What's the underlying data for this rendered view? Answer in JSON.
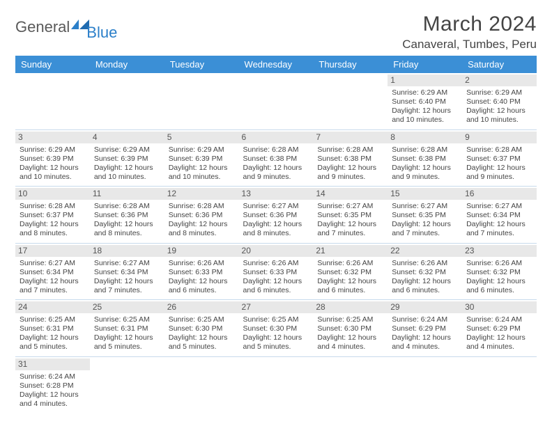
{
  "brand": {
    "part1": "General",
    "part2": "Blue",
    "color": "#2b7fc9"
  },
  "title": "March 2024",
  "location": "Canaveral, Tumbes, Peru",
  "header_bg": "#3b8fd6",
  "days": [
    "Sunday",
    "Monday",
    "Tuesday",
    "Wednesday",
    "Thursday",
    "Friday",
    "Saturday"
  ],
  "weeks": [
    [
      null,
      null,
      null,
      null,
      null,
      {
        "n": "1",
        "sr": "6:29 AM",
        "ss": "6:40 PM",
        "dl": "12 hours and 10 minutes."
      },
      {
        "n": "2",
        "sr": "6:29 AM",
        "ss": "6:40 PM",
        "dl": "12 hours and 10 minutes."
      }
    ],
    [
      {
        "n": "3",
        "sr": "6:29 AM",
        "ss": "6:39 PM",
        "dl": "12 hours and 10 minutes."
      },
      {
        "n": "4",
        "sr": "6:29 AM",
        "ss": "6:39 PM",
        "dl": "12 hours and 10 minutes."
      },
      {
        "n": "5",
        "sr": "6:29 AM",
        "ss": "6:39 PM",
        "dl": "12 hours and 10 minutes."
      },
      {
        "n": "6",
        "sr": "6:28 AM",
        "ss": "6:38 PM",
        "dl": "12 hours and 9 minutes."
      },
      {
        "n": "7",
        "sr": "6:28 AM",
        "ss": "6:38 PM",
        "dl": "12 hours and 9 minutes."
      },
      {
        "n": "8",
        "sr": "6:28 AM",
        "ss": "6:38 PM",
        "dl": "12 hours and 9 minutes."
      },
      {
        "n": "9",
        "sr": "6:28 AM",
        "ss": "6:37 PM",
        "dl": "12 hours and 9 minutes."
      }
    ],
    [
      {
        "n": "10",
        "sr": "6:28 AM",
        "ss": "6:37 PM",
        "dl": "12 hours and 8 minutes."
      },
      {
        "n": "11",
        "sr": "6:28 AM",
        "ss": "6:36 PM",
        "dl": "12 hours and 8 minutes."
      },
      {
        "n": "12",
        "sr": "6:28 AM",
        "ss": "6:36 PM",
        "dl": "12 hours and 8 minutes."
      },
      {
        "n": "13",
        "sr": "6:27 AM",
        "ss": "6:36 PM",
        "dl": "12 hours and 8 minutes."
      },
      {
        "n": "14",
        "sr": "6:27 AM",
        "ss": "6:35 PM",
        "dl": "12 hours and 7 minutes."
      },
      {
        "n": "15",
        "sr": "6:27 AM",
        "ss": "6:35 PM",
        "dl": "12 hours and 7 minutes."
      },
      {
        "n": "16",
        "sr": "6:27 AM",
        "ss": "6:34 PM",
        "dl": "12 hours and 7 minutes."
      }
    ],
    [
      {
        "n": "17",
        "sr": "6:27 AM",
        "ss": "6:34 PM",
        "dl": "12 hours and 7 minutes."
      },
      {
        "n": "18",
        "sr": "6:27 AM",
        "ss": "6:34 PM",
        "dl": "12 hours and 7 minutes."
      },
      {
        "n": "19",
        "sr": "6:26 AM",
        "ss": "6:33 PM",
        "dl": "12 hours and 6 minutes."
      },
      {
        "n": "20",
        "sr": "6:26 AM",
        "ss": "6:33 PM",
        "dl": "12 hours and 6 minutes."
      },
      {
        "n": "21",
        "sr": "6:26 AM",
        "ss": "6:32 PM",
        "dl": "12 hours and 6 minutes."
      },
      {
        "n": "22",
        "sr": "6:26 AM",
        "ss": "6:32 PM",
        "dl": "12 hours and 6 minutes."
      },
      {
        "n": "23",
        "sr": "6:26 AM",
        "ss": "6:32 PM",
        "dl": "12 hours and 6 minutes."
      }
    ],
    [
      {
        "n": "24",
        "sr": "6:25 AM",
        "ss": "6:31 PM",
        "dl": "12 hours and 5 minutes."
      },
      {
        "n": "25",
        "sr": "6:25 AM",
        "ss": "6:31 PM",
        "dl": "12 hours and 5 minutes."
      },
      {
        "n": "26",
        "sr": "6:25 AM",
        "ss": "6:30 PM",
        "dl": "12 hours and 5 minutes."
      },
      {
        "n": "27",
        "sr": "6:25 AM",
        "ss": "6:30 PM",
        "dl": "12 hours and 5 minutes."
      },
      {
        "n": "28",
        "sr": "6:25 AM",
        "ss": "6:30 PM",
        "dl": "12 hours and 4 minutes."
      },
      {
        "n": "29",
        "sr": "6:24 AM",
        "ss": "6:29 PM",
        "dl": "12 hours and 4 minutes."
      },
      {
        "n": "30",
        "sr": "6:24 AM",
        "ss": "6:29 PM",
        "dl": "12 hours and 4 minutes."
      }
    ],
    [
      {
        "n": "31",
        "sr": "6:24 AM",
        "ss": "6:28 PM",
        "dl": "12 hours and 4 minutes."
      },
      null,
      null,
      null,
      null,
      null,
      null
    ]
  ],
  "labels": {
    "sunrise": "Sunrise: ",
    "sunset": "Sunset: ",
    "daylight": "Daylight: "
  }
}
